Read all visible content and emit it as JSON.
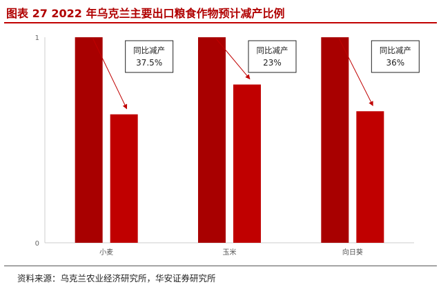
{
  "title": "图表 27 2022 年乌克兰主要出口粮食作物预计减产比例",
  "source": "资料来源：乌克兰农业经济研究所，华安证券研究所",
  "colors": {
    "bar_base": "#a80000",
    "bar_forecast": "#c00000",
    "title": "#b00000",
    "arrow": "#c00000"
  },
  "chart_data": {
    "type": "bar",
    "categories": [
      "小麦",
      "玉米",
      "向日葵"
    ],
    "series": [
      {
        "values": [
          1,
          1,
          1
        ]
      },
      {
        "values": [
          0.625,
          0.77,
          0.64
        ]
      }
    ],
    "ylim": [
      0,
      1
    ],
    "yticks": [
      "0",
      "1"
    ],
    "annotations": [
      {
        "category": "小麦",
        "label": "同比减产",
        "value": "37.5%"
      },
      {
        "category": "玉米",
        "label": "同比减产",
        "value": "23%"
      },
      {
        "category": "向日葵",
        "label": "同比减产",
        "value": "36%"
      }
    ],
    "grid": false,
    "legend": "none"
  }
}
